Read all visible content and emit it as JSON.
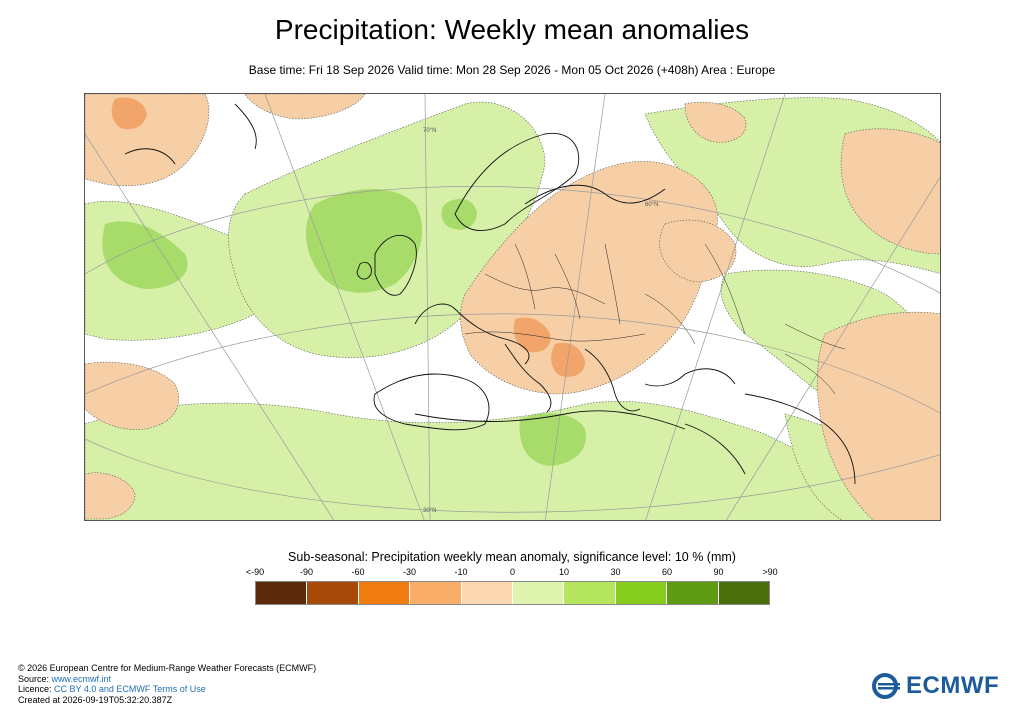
{
  "header": {
    "title": "Precipitation: Weekly mean anomalies",
    "subtitle": "Base time: Fri 18 Sep 2026 Valid time: Mon 28 Sep 2026 - Mon 05 Oct 2026 (+408h) Area : Europe"
  },
  "map": {
    "area": "Europe",
    "graticule_labels": [
      "70°N",
      "60°N",
      "30°N"
    ],
    "colors": {
      "land_outline": "#000000",
      "dry_light": "#f7cfa6",
      "wet_light": "#d6f0a8",
      "wet_medium": "#a8dc6a",
      "dry_medium": "#f1a56a"
    }
  },
  "legend": {
    "title": "Sub-seasonal: Precipitation weekly mean anomaly, significance level: 10 % (mm)",
    "ticks": [
      "<-90",
      "-90",
      "-60",
      "-30",
      "-10",
      "0",
      "10",
      "30",
      "60",
      "90",
      ">90"
    ],
    "colors": [
      "#5a2a0a",
      "#a84a0a",
      "#f07b10",
      "#f8ae68",
      "#fbd8b2",
      "#ddf3ae",
      "#b6e55e",
      "#86cc1e",
      "#5f9b12",
      "#4a6e0c"
    ]
  },
  "footer": {
    "copyright": "© 2026 European Centre for Medium-Range Weather Forecasts (ECMWF)",
    "source_label": "Source: ",
    "source_link": "www.ecmwf.int",
    "licence_label": "Licence: ",
    "licence_link": "CC BY 4.0 and ECMWF Terms of Use",
    "created": "Created at 2026-09-19T05:32:20.387Z"
  },
  "logo": {
    "text": "ECMWF",
    "color": "#1d5c9b"
  }
}
